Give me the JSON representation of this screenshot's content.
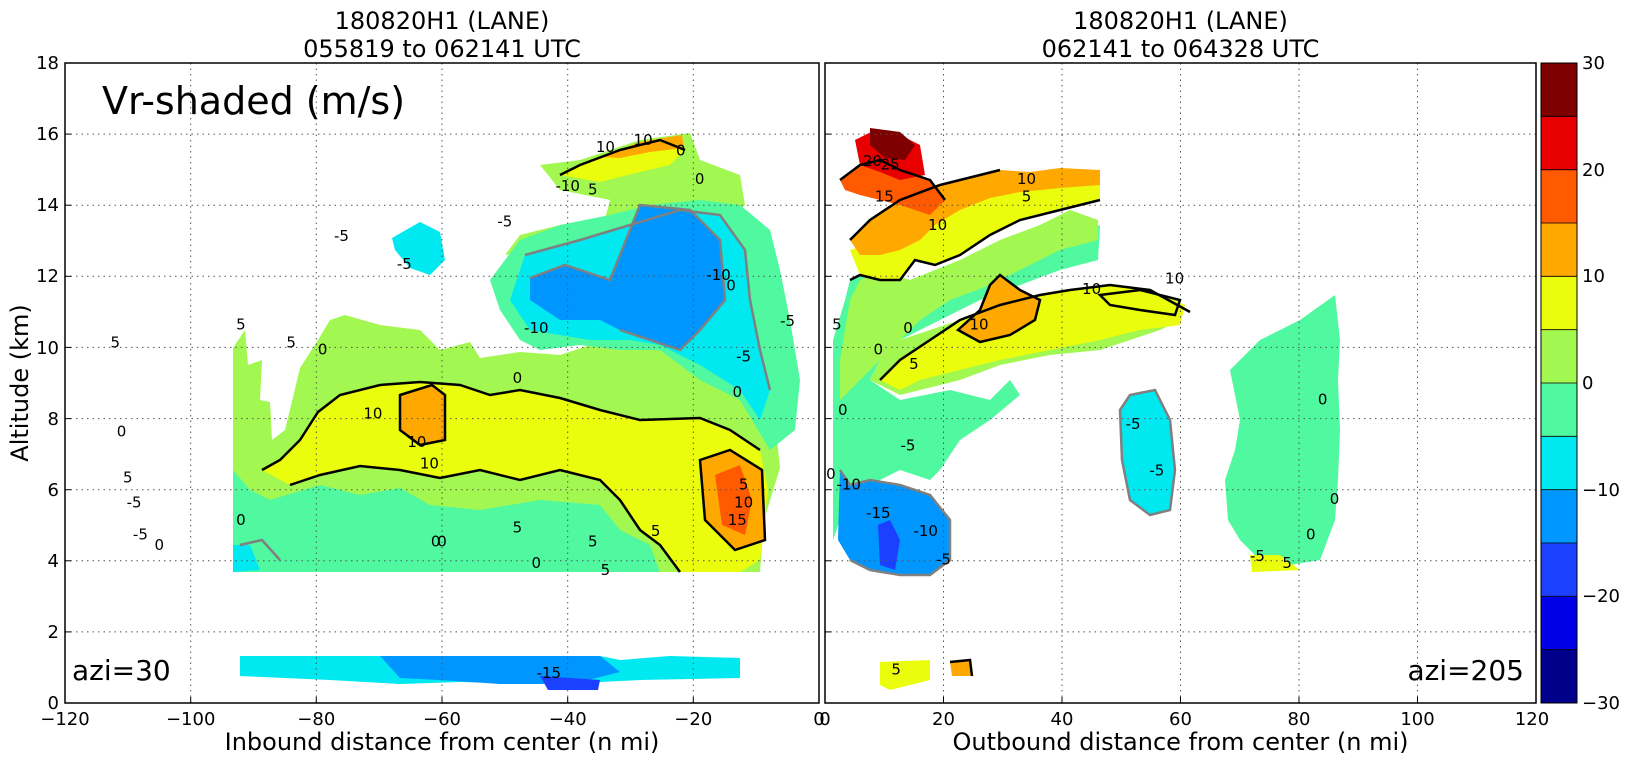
{
  "chart_data": [
    {
      "type": "heatmap",
      "title_line1": "180820H1 (LANE)",
      "title_line2": "055819 to 062141 UTC",
      "xlabel": "Inbound distance from center (n mi)",
      "ylabel": "Altitude (km)",
      "xlim": [
        -120,
        0
      ],
      "ylim": [
        0,
        18
      ],
      "xticks": [
        "−120",
        "−100",
        "−80",
        "−60",
        "−40",
        "−20",
        "0"
      ],
      "yticks": [
        "0",
        "2",
        "4",
        "6",
        "8",
        "10",
        "12",
        "14",
        "16",
        "18"
      ],
      "grid": true,
      "annotations": [
        "Vr-shaded (m/s)",
        "azi=30"
      ],
      "contour_labels": [
        {
          "x": -112,
          "y": 10,
          "text": "5"
        },
        {
          "x": -111,
          "y": 7.5,
          "text": "0"
        },
        {
          "x": -110,
          "y": 6.2,
          "text": "5"
        },
        {
          "x": -109,
          "y": 5.5,
          "text": "-5"
        },
        {
          "x": -108,
          "y": 4.6,
          "text": "-5"
        },
        {
          "x": -105,
          "y": 4.3,
          "text": "0"
        },
        {
          "x": -92,
          "y": 5,
          "text": "0"
        },
        {
          "x": -92,
          "y": 10.5,
          "text": "5"
        },
        {
          "x": -84,
          "y": 10,
          "text": "5"
        },
        {
          "x": -79,
          "y": 9.8,
          "text": "0"
        },
        {
          "x": -76,
          "y": 13,
          "text": "-5"
        },
        {
          "x": -71,
          "y": 8.0,
          "text": "10"
        },
        {
          "x": -66,
          "y": 12.2,
          "text": "-5"
        },
        {
          "x": -64,
          "y": 7.2,
          "text": "10"
        },
        {
          "x": -62,
          "y": 6.6,
          "text": "10"
        },
        {
          "x": -61,
          "y": 4.4,
          "text": "0"
        },
        {
          "x": -60,
          "y": 4.4,
          "text": "0"
        },
        {
          "x": -50,
          "y": 13.4,
          "text": "-5"
        },
        {
          "x": -48,
          "y": 9.0,
          "text": "0"
        },
        {
          "x": -45,
          "y": 10.4,
          "text": "-10"
        },
        {
          "x": -48,
          "y": 4.8,
          "text": "5"
        },
        {
          "x": -45,
          "y": 3.8,
          "text": "0"
        },
        {
          "x": -40,
          "y": 14.4,
          "text": "-10"
        },
        {
          "x": -36,
          "y": 14.3,
          "text": "5"
        },
        {
          "x": -34,
          "y": 15.5,
          "text": "10"
        },
        {
          "x": -36,
          "y": 4.4,
          "text": "5"
        },
        {
          "x": -34,
          "y": 3.6,
          "text": "5"
        },
        {
          "x": -28,
          "y": 15.7,
          "text": "10"
        },
        {
          "x": -26,
          "y": 4.7,
          "text": "5"
        },
        {
          "x": -22,
          "y": 15.4,
          "text": "0"
        },
        {
          "x": -19,
          "y": 14.6,
          "text": "0"
        },
        {
          "x": -16,
          "y": 11.9,
          "text": "-10"
        },
        {
          "x": -14,
          "y": 11.6,
          "text": "0"
        },
        {
          "x": -12,
          "y": 9.6,
          "text": "-5"
        },
        {
          "x": -13,
          "y": 8.6,
          "text": "0"
        },
        {
          "x": -12,
          "y": 6.0,
          "text": "5"
        },
        {
          "x": -12,
          "y": 5.5,
          "text": "10"
        },
        {
          "x": -13,
          "y": 5.0,
          "text": "15"
        },
        {
          "x": -5,
          "y": 10.6,
          "text": "-5"
        },
        {
          "x": -43,
          "y": 0.7,
          "text": "-15"
        }
      ]
    },
    {
      "type": "heatmap",
      "title_line1": "180820H1 (LANE)",
      "title_line2": "062141 to 064328 UTC",
      "xlabel": "Outbound distance from center (n mi)",
      "ylabel": "",
      "xlim": [
        0,
        120
      ],
      "ylim": [
        0,
        18
      ],
      "xticks": [
        "0",
        "20",
        "40",
        "60",
        "80",
        "100",
        "120"
      ],
      "yticks": [],
      "grid": true,
      "annotations": [
        "azi=205"
      ],
      "contour_labels": [
        {
          "x": 8,
          "y": 15.1,
          "text": "20"
        },
        {
          "x": 11,
          "y": 15.0,
          "text": "25"
        },
        {
          "x": 10,
          "y": 14.1,
          "text": "15"
        },
        {
          "x": 19,
          "y": 13.3,
          "text": "10"
        },
        {
          "x": 34,
          "y": 14.6,
          "text": "10"
        },
        {
          "x": 34,
          "y": 14.1,
          "text": "5"
        },
        {
          "x": 26,
          "y": 10.5,
          "text": "10"
        },
        {
          "x": 45,
          "y": 11.5,
          "text": "10"
        },
        {
          "x": 59,
          "y": 11.8,
          "text": "10"
        },
        {
          "x": 2,
          "y": 10.5,
          "text": "5"
        },
        {
          "x": 14,
          "y": 10.4,
          "text": "0"
        },
        {
          "x": 15,
          "y": 9.4,
          "text": "5"
        },
        {
          "x": 9,
          "y": 9.8,
          "text": "0"
        },
        {
          "x": 3,
          "y": 8.1,
          "text": "0"
        },
        {
          "x": 14,
          "y": 7.1,
          "text": "-5"
        },
        {
          "x": 1,
          "y": 6.3,
          "text": "0"
        },
        {
          "x": 4,
          "y": 6.0,
          "text": "-10"
        },
        {
          "x": 9,
          "y": 5.2,
          "text": "-15"
        },
        {
          "x": 17,
          "y": 4.7,
          "text": "-10"
        },
        {
          "x": 20,
          "y": 3.9,
          "text": "-5"
        },
        {
          "x": 52,
          "y": 7.7,
          "text": "-5"
        },
        {
          "x": 56,
          "y": 6.4,
          "text": "-5"
        },
        {
          "x": 84,
          "y": 8.4,
          "text": "0"
        },
        {
          "x": 86,
          "y": 5.6,
          "text": "0"
        },
        {
          "x": 82,
          "y": 4.6,
          "text": "0"
        },
        {
          "x": 73,
          "y": 4.0,
          "text": "-5"
        },
        {
          "x": 78,
          "y": 3.8,
          "text": "5"
        },
        {
          "x": 12,
          "y": 0.8,
          "text": "5"
        }
      ]
    }
  ],
  "colorbar": {
    "levels": [
      -30,
      -25,
      -20,
      -15,
      -10,
      -5,
      0,
      5,
      10,
      15,
      20,
      25,
      30
    ],
    "tick_labels": [
      "−30",
      "−20",
      "−10",
      "0",
      "10",
      "20",
      "30"
    ],
    "tick_values": [
      -30,
      -20,
      -10,
      0,
      10,
      20,
      30
    ],
    "colors": [
      "#00008b",
      "#0000e6",
      "#1c40ff",
      "#0096ff",
      "#00e8f0",
      "#50f8a0",
      "#a2f850",
      "#eafd0c",
      "#ffa800",
      "#ff5a00",
      "#e80000",
      "#7f0000"
    ]
  },
  "colors": {
    "contour_positive": "#000000",
    "contour_negative": "#808080",
    "grid": "#555555"
  }
}
